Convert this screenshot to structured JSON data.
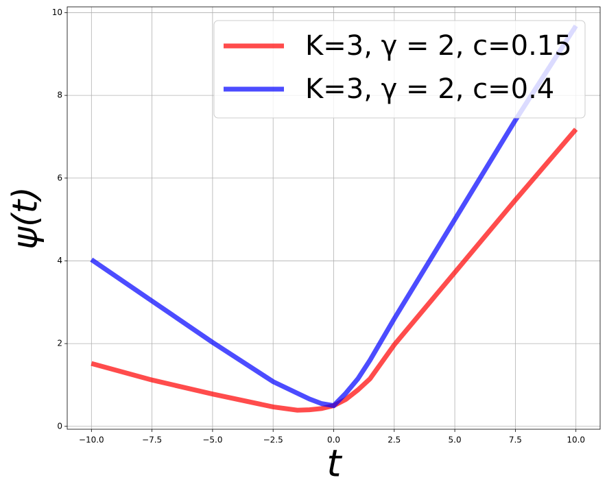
{
  "chart_data": {
    "type": "line",
    "x_label": "t",
    "y_label": "ψ(t)",
    "x": [
      -10,
      -7.5,
      -5,
      -2.5,
      -1.5,
      -1,
      -0.5,
      0,
      0.5,
      1,
      1.5,
      2.5,
      5,
      7.5,
      10
    ],
    "series": [
      {
        "name": "K=3, γ = 2, c=0.15",
        "color": "#ff0000",
        "values": [
          1.52,
          1.12,
          0.78,
          0.47,
          0.39,
          0.4,
          0.43,
          0.5,
          0.65,
          0.88,
          1.15,
          1.97,
          3.72,
          5.47,
          7.18
        ]
      },
      {
        "name": "K=3, γ = 2, c=0.4",
        "color": "#0000ff",
        "values": [
          4.03,
          3.03,
          2.03,
          1.08,
          0.8,
          0.66,
          0.55,
          0.5,
          0.8,
          1.15,
          1.6,
          2.6,
          5.0,
          7.4,
          9.68
        ]
      }
    ],
    "xlim": [
      -11,
      11
    ],
    "ylim": [
      -0.07,
      10.14
    ],
    "xticks": [
      {
        "value": -10,
        "label": "−10.0"
      },
      {
        "value": -7.5,
        "label": "−7.5"
      },
      {
        "value": -5,
        "label": "−5.0"
      },
      {
        "value": -2.5,
        "label": "−2.5"
      },
      {
        "value": 0,
        "label": "0.0"
      },
      2.5,
      {
        "value": 5,
        "label": "5.0"
      },
      7.5,
      {
        "value": 10,
        "label": "10.0"
      }
    ],
    "yticks": [
      0,
      2,
      4,
      6,
      8,
      10
    ],
    "grid": true,
    "legend": "upper right"
  }
}
